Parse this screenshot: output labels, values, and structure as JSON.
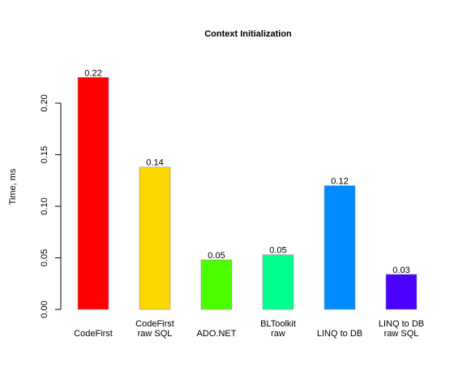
{
  "chart_data": {
    "type": "bar",
    "title": "Context Initialization",
    "xlabel": "",
    "ylabel": "Time, ms",
    "ylim": [
      0,
      0.235
    ],
    "yticks": [
      "0.00",
      "0.05",
      "0.10",
      "0.15",
      "0.20"
    ],
    "categories": [
      [
        "CodeFirst"
      ],
      [
        "CodeFirst",
        "raw SQL"
      ],
      [
        "ADO.NET"
      ],
      [
        "BLToolkit",
        "raw"
      ],
      [
        "LINQ to DB"
      ],
      [
        "LINQ to DB",
        "raw SQL"
      ]
    ],
    "values": [
      0.225,
      0.138,
      0.048,
      0.053,
      0.12,
      0.034
    ],
    "value_labels": [
      "0.22",
      "0.14",
      "0.05",
      "0.05",
      "0.12",
      "0.03"
    ],
    "colors": [
      "#ff0000",
      "#ffd700",
      "#4cff00",
      "#00ff8c",
      "#008cff",
      "#4b00ff"
    ],
    "grid": false,
    "legend": "none"
  }
}
